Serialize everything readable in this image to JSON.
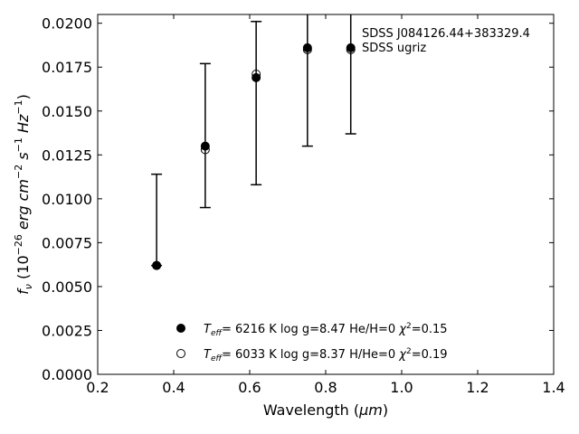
{
  "chart_data": {
    "type": "scatter",
    "title": "",
    "xlabel_main": "Wavelength (",
    "xlabel_unit": "μm",
    "xlabel_end": ")",
    "ylabel_pre": "f",
    "ylabel_sub": "ν",
    "ylabel_rest1": " (10",
    "ylabel_sup1": "−26",
    "ylabel_rest2": " erg cm",
    "ylabel_sup2": "−2",
    "ylabel_rest3": " s",
    "ylabel_sup3": "−1",
    "ylabel_rest4": " Hz",
    "ylabel_sup4": "−1",
    "ylabel_rest5": ")",
    "xlim": [
      0.2,
      1.4
    ],
    "ylim": [
      0.0,
      0.0205
    ],
    "xticks": [
      0.2,
      0.4,
      0.6,
      0.8,
      1.0,
      1.2,
      1.4
    ],
    "xtick_labels": [
      "0.2",
      "0.4",
      "0.6",
      "0.8",
      "1.0",
      "1.2",
      "1.4"
    ],
    "yticks": [
      0.0,
      0.0025,
      0.005,
      0.0075,
      0.01,
      0.0125,
      0.015,
      0.0175,
      0.02
    ],
    "ytick_labels": [
      "0.0000",
      "0.0025",
      "0.0050",
      "0.0075",
      "0.0100",
      "0.0125",
      "0.0150",
      "0.0175",
      "0.0200"
    ],
    "grid": false,
    "annotations": [
      "SDSS J084126.44+383329.4",
      "SDSS ugriz"
    ],
    "observed": {
      "x": [
        0.355,
        0.483,
        0.617,
        0.752,
        0.866
      ],
      "y": [
        0.0062,
        0.0129,
        0.0169,
        0.0185,
        0.0186
      ],
      "yerr_low": [
        0.0062,
        0.0095,
        0.0108,
        0.013,
        0.0137
      ],
      "yerr_high": [
        0.0114,
        0.0177,
        0.0201,
        0.021,
        0.021
      ]
    },
    "series": [
      {
        "marker": "filled-circle",
        "x": [
          0.355,
          0.483,
          0.617,
          0.752,
          0.866
        ],
        "y": [
          0.0062,
          0.013,
          0.0169,
          0.0186,
          0.0186
        ],
        "legend": {
          "teff_sym": "T",
          "teff_sub": "eff",
          "text1": "=  6216 K  log g=8.47  He/H=0  ",
          "chi": "χ",
          "chi_sup": "2",
          "text2": "=0.15"
        }
      },
      {
        "marker": "open-circle",
        "x": [
          0.355,
          0.483,
          0.617,
          0.752,
          0.866
        ],
        "y": [
          0.0062,
          0.0128,
          0.0171,
          0.0185,
          0.0185
        ],
        "legend": {
          "teff_sym": "T",
          "teff_sub": "eff",
          "text1": "=  6033 K  log g=8.37  H/He=0  ",
          "chi": "χ",
          "chi_sup": "2",
          "text2": "=0.19"
        }
      }
    ],
    "legend_location": "lower-right",
    "colors": {
      "marker": "#000000",
      "background": "#ffffff",
      "axes": "#000000"
    }
  }
}
